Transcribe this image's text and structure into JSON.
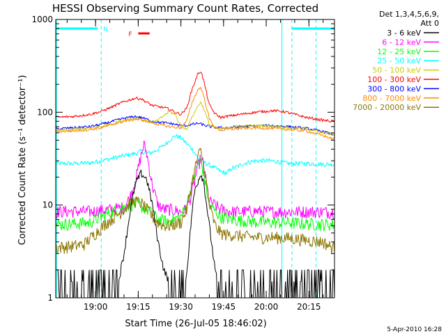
{
  "chart_data": {
    "type": "line",
    "title": "HESSI Observing Summary Count Rates, Corrected",
    "xlabel": "Start Time (26-Jul-05 18:46:02)",
    "ylabel": "Corrected Count Rate (s⁻¹ detector⁻¹)",
    "y_scale": "log",
    "ylim": [
      1,
      1000
    ],
    "xlim_minutes": [
      0,
      98
    ],
    "x_tick_labels": [
      "19:00",
      "19:15",
      "19:30",
      "19:45",
      "20:00",
      "20:15"
    ],
    "x_tick_minutes": [
      14,
      29,
      44,
      59,
      74,
      89
    ],
    "y_tick_labels": [
      "1",
      "10",
      "100",
      "1000"
    ],
    "y_tick_values": [
      1,
      10,
      100,
      1000
    ],
    "legend_header": [
      "Det 1,3,4,5,6,9,",
      "Att 0"
    ],
    "legend_position": "right",
    "footer_date": "5-Apr-2010 16:28",
    "flag_N": {
      "label": "N",
      "color": "#00ffff"
    },
    "flag_F": {
      "label": "F",
      "color": "#ff0000"
    },
    "night_intervals_minutes": [
      [
        0,
        16
      ],
      [
        83,
        98
      ]
    ],
    "flare_interval_minutes": [
      29,
      33
    ],
    "series": [
      {
        "name": "3 - 6 keV",
        "color": "#000000",
        "x": [
          0,
          6,
          9,
          14,
          17,
          18,
          22,
          24,
          26,
          28,
          30,
          32,
          34,
          36,
          38,
          40,
          42,
          44,
          46,
          48,
          49,
          51,
          52,
          54,
          56,
          58,
          60,
          65,
          70,
          75,
          80,
          85,
          90,
          96
        ],
        "y": [
          1,
          1,
          1,
          1,
          1,
          1,
          1.5,
          3,
          8,
          17,
          22,
          19,
          10,
          4,
          2,
          1.5,
          1,
          1,
          1.8,
          9,
          15,
          22,
          18,
          6,
          2,
          1,
          1,
          1,
          1,
          1,
          1,
          1,
          1,
          1
        ]
      },
      {
        "name": "6 - 12 keV",
        "color": "#ff00ff",
        "x": [
          0,
          6,
          12,
          16,
          20,
          24,
          26,
          28,
          30,
          31,
          32,
          34,
          36,
          38,
          40,
          44,
          46,
          48,
          50,
          51,
          52,
          54,
          58,
          62,
          66,
          70,
          76,
          82,
          88,
          94,
          97
        ],
        "y": [
          8.5,
          8.6,
          8.5,
          8.8,
          9,
          9.5,
          12,
          18,
          34,
          45,
          36,
          16,
          10,
          9,
          9,
          8.5,
          9,
          14,
          26,
          32,
          26,
          11,
          9,
          8.5,
          8.5,
          8.6,
          8.5,
          8.5,
          8.5,
          8.5,
          8.4
        ]
      },
      {
        "name": "12 - 25 keV",
        "color": "#00ff00",
        "x": [
          0,
          6,
          12,
          16,
          20,
          24,
          28,
          32,
          34,
          36,
          38,
          40,
          44,
          46,
          48,
          50,
          51,
          52,
          54,
          58,
          62,
          66,
          70,
          76,
          82,
          88,
          94,
          97
        ],
        "y": [
          6.2,
          6.3,
          6.5,
          7.5,
          8.5,
          9.5,
          10.5,
          9,
          8,
          7,
          6.8,
          6.8,
          7.5,
          10,
          17,
          28,
          30,
          22,
          10,
          7.5,
          7,
          6.8,
          6.6,
          6.5,
          6.5,
          6.3,
          6.2,
          6.2
        ]
      },
      {
        "name": "25 - 50 keV",
        "color": "#00ffff",
        "x": [
          0,
          6,
          12,
          16,
          20,
          24,
          28,
          30,
          32,
          34,
          36,
          38,
          40,
          42,
          44,
          46,
          48,
          50,
          52,
          54,
          56,
          58,
          60,
          62,
          64,
          66,
          70,
          76,
          82,
          88,
          94,
          97
        ],
        "y": [
          28,
          28,
          28.5,
          30,
          32,
          34,
          36,
          38,
          36,
          37,
          40,
          44,
          50,
          56,
          53,
          46,
          40,
          32,
          29,
          27,
          25,
          23,
          22,
          25,
          26,
          28,
          30,
          30,
          28,
          28,
          27.5,
          27.5
        ]
      },
      {
        "name": "50 - 100 keV",
        "color": "#cccc00",
        "x": [
          0,
          6,
          12,
          16,
          20,
          24,
          28,
          30,
          32,
          34,
          36,
          38,
          40,
          42,
          44,
          46,
          48,
          50,
          51,
          52,
          54,
          56,
          58,
          60,
          62,
          66,
          70,
          76,
          82,
          88,
          94,
          97
        ],
        "y": [
          64,
          65,
          67,
          70,
          76,
          82,
          86,
          84,
          80,
          78,
          82,
          92,
          102,
          94,
          70,
          66,
          90,
          118,
          128,
          110,
          74,
          68,
          66,
          68,
          70,
          71,
          72,
          71,
          68,
          67,
          60,
          58
        ]
      },
      {
        "name": "100 - 300 keV",
        "color": "#ff0000",
        "x": [
          0,
          6,
          12,
          16,
          20,
          24,
          28,
          30,
          32,
          34,
          36,
          38,
          40,
          42,
          44,
          46,
          48,
          50,
          51,
          52,
          54,
          56,
          58,
          60,
          62,
          66,
          70,
          76,
          80,
          84,
          88,
          92,
          94,
          97
        ],
        "y": [
          88,
          90,
          95,
          102,
          115,
          130,
          142,
          140,
          128,
          118,
          115,
          112,
          108,
          100,
          95,
          110,
          180,
          260,
          278,
          220,
          120,
          96,
          88,
          90,
          92,
          96,
          100,
          104,
          102,
          95,
          88,
          84,
          82,
          80
        ]
      },
      {
        "name": "300 - 800 keV",
        "color": "#0000ff",
        "x": [
          0,
          6,
          12,
          16,
          20,
          24,
          28,
          30,
          32,
          34,
          36,
          38,
          40,
          42,
          44,
          46,
          48,
          50,
          52,
          54,
          56,
          58,
          60,
          62,
          66,
          70,
          76,
          82,
          88,
          94,
          97
        ],
        "y": [
          66,
          68,
          70,
          74,
          80,
          86,
          90,
          88,
          84,
          80,
          78,
          77,
          76,
          74,
          72,
          72,
          74,
          76,
          73,
          70,
          69,
          68,
          68,
          69,
          70,
          71,
          72,
          70,
          67,
          62,
          58
        ]
      },
      {
        "name": "800 - 7000 keV",
        "color": "#ff8800",
        "x": [
          0,
          6,
          12,
          16,
          20,
          24,
          28,
          30,
          32,
          34,
          36,
          38,
          40,
          42,
          44,
          46,
          48,
          50,
          51,
          52,
          54,
          56,
          58,
          60,
          62,
          66,
          70,
          76,
          82,
          88,
          94,
          97
        ],
        "y": [
          62,
          63,
          65,
          68,
          74,
          80,
          84,
          83,
          80,
          77,
          74,
          72,
          70,
          69,
          68,
          80,
          130,
          175,
          185,
          150,
          85,
          68,
          64,
          65,
          66,
          67,
          68,
          67,
          65,
          63,
          56,
          52
        ]
      },
      {
        "name": "7000 - 20000 keV",
        "color": "#8b7500",
        "x": [
          0,
          6,
          10,
          14,
          18,
          22,
          24,
          26,
          28,
          30,
          32,
          34,
          36,
          38,
          40,
          44,
          46,
          48,
          50,
          51,
          52,
          54,
          56,
          58,
          60,
          62,
          66,
          70,
          76,
          82,
          88,
          94,
          97
        ],
        "y": [
          3.5,
          3.6,
          3.8,
          5,
          6.5,
          8,
          9,
          10.5,
          11,
          10.5,
          9,
          7.5,
          6.5,
          6,
          6,
          6.5,
          9,
          18,
          34,
          38,
          28,
          10,
          6,
          5,
          4.8,
          4.8,
          4.6,
          4.5,
          4.5,
          4.4,
          4.2,
          4,
          3.5
        ]
      }
    ]
  }
}
